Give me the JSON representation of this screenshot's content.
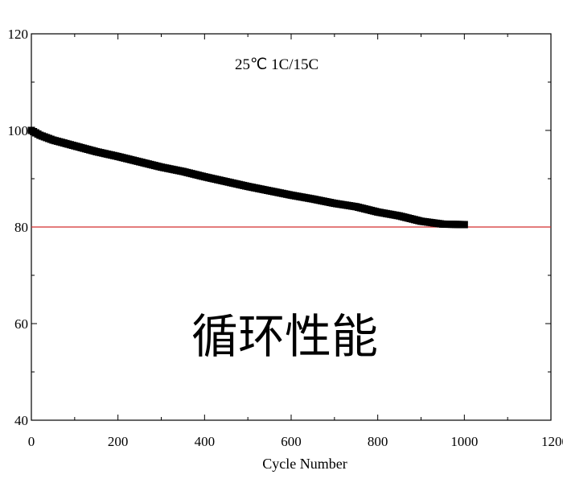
{
  "chart_data": {
    "type": "scatter",
    "title": "",
    "annotation": "25℃  1C/15C",
    "center_text": "循环性能",
    "xlabel": "Cycle Number",
    "ylabel": "",
    "xlim": [
      0,
      1200
    ],
    "ylim": [
      40,
      120
    ],
    "x_ticks": [
      0,
      200,
      400,
      600,
      800,
      1000,
      1200
    ],
    "y_ticks": [
      40,
      60,
      80,
      100,
      120
    ],
    "x_tick_labels": [
      "0",
      "200",
      "400",
      "600",
      "800",
      "1000",
      "1200"
    ],
    "y_tick_labels": [
      "40",
      "60",
      "80",
      "100",
      "120"
    ],
    "grid": false,
    "reference_line": {
      "y": 80,
      "color": "#d32f2f"
    },
    "series": [
      {
        "marker": "square",
        "color": "#000000",
        "points": [
          [
            0,
            100
          ],
          [
            20,
            99
          ],
          [
            50,
            98
          ],
          [
            100,
            96.8
          ],
          [
            150,
            95.6
          ],
          [
            200,
            94.6
          ],
          [
            250,
            93.5
          ],
          [
            300,
            92.4
          ],
          [
            350,
            91.5
          ],
          [
            400,
            90.4
          ],
          [
            450,
            89.4
          ],
          [
            500,
            88.4
          ],
          [
            550,
            87.5
          ],
          [
            600,
            86.6
          ],
          [
            650,
            85.8
          ],
          [
            700,
            84.9
          ],
          [
            750,
            84.2
          ],
          [
            800,
            83.1
          ],
          [
            850,
            82.3
          ],
          [
            900,
            81.2
          ],
          [
            950,
            80.6
          ],
          [
            1000,
            80.5
          ]
        ]
      }
    ]
  }
}
